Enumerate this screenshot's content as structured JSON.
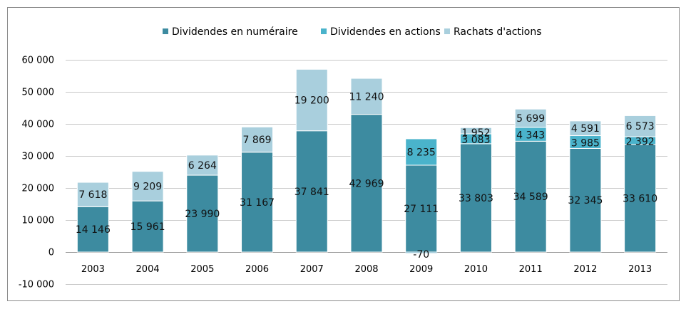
{
  "chart_data": {
    "type": "bar",
    "stacked": true,
    "categories": [
      "2003",
      "2004",
      "2005",
      "2006",
      "2007",
      "2008",
      "2009",
      "2010",
      "2011",
      "2012",
      "2013"
    ],
    "series": [
      {
        "name": "Dividendes en numéraire",
        "color": "#3d8ba0",
        "values": [
          14146,
          15961,
          23990,
          31167,
          37841,
          42969,
          27111,
          33803,
          34589,
          32345,
          33610
        ],
        "labels": [
          "14 146",
          "15 961",
          "23 990",
          "31 167",
          "37 841",
          "42 969",
          "27 111",
          "33 803",
          "34 589",
          "32 345",
          "33 610"
        ]
      },
      {
        "name": "Dividendes en actions",
        "color": "#4ab3cb",
        "values": [
          0,
          0,
          0,
          0,
          0,
          0,
          8235,
          3083,
          4343,
          3985,
          2392
        ],
        "labels": [
          "",
          "",
          "",
          "",
          "",
          "",
          "8 235",
          "3 083",
          "4 343",
          "3 985",
          "2 392"
        ]
      },
      {
        "name": "Rachats d'actions",
        "color": "#a9cfdd",
        "values": [
          7618,
          9209,
          6264,
          7869,
          19200,
          11240,
          -70,
          1952,
          5699,
          4591,
          6573
        ],
        "labels": [
          "7 618",
          "9 209",
          "6 264",
          "7 869",
          "19 200",
          "11 240",
          "-70",
          "1 952",
          "5 699",
          "4 591",
          "6 573"
        ]
      }
    ],
    "ylim": [
      -10000,
      60000
    ],
    "yticks": [
      -10000,
      0,
      10000,
      20000,
      30000,
      40000,
      50000,
      60000
    ],
    "ytick_labels": [
      "-10 000",
      "0",
      "10 000",
      "20 000",
      "30 000",
      "40 000",
      "50 000",
      "60 000"
    ],
    "grid": true,
    "legend_position": "top-center",
    "title": "",
    "xlabel": "",
    "ylabel": ""
  }
}
